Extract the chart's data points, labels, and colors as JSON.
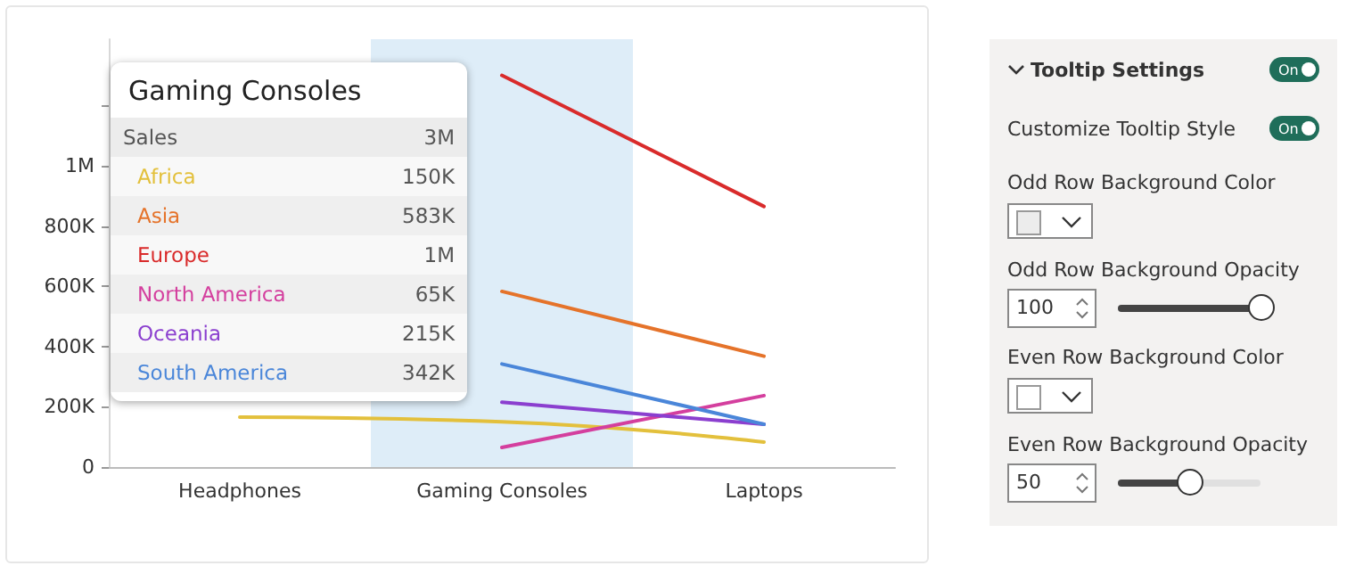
{
  "chart_data": {
    "type": "line",
    "categories": [
      "Headphones",
      "Gaming Consoles",
      "Laptops"
    ],
    "series": [
      {
        "name": "Africa",
        "color": "#e3c03c",
        "values": [
          166000,
          150000,
          83000
        ]
      },
      {
        "name": "Asia",
        "color": "#e5732a",
        "values": [
          null,
          583000,
          368000
        ]
      },
      {
        "name": "Europe",
        "color": "#d92b2b",
        "values": [
          null,
          1300000,
          865000
        ]
      },
      {
        "name": "North America",
        "color": "#d43f9e",
        "values": [
          null,
          65000,
          237000
        ]
      },
      {
        "name": "Oceania",
        "color": "#8b3fcf",
        "values": [
          null,
          215000,
          142000
        ]
      },
      {
        "name": "South America",
        "color": "#4a86d9",
        "values": [
          null,
          342000,
          142000
        ]
      }
    ],
    "ylim": [
      0,
      1420000
    ],
    "yticks": [
      0,
      {
        "value": 200000,
        "label": "200K"
      },
      {
        "value": 400000,
        "label": "400K"
      },
      {
        "value": 600000,
        "label": "600K"
      },
      {
        "value": 800000,
        "label": "800K"
      },
      {
        "value": 1000000,
        "label": "1M"
      },
      {
        "value": 1200000,
        "label": null
      }
    ],
    "bands": [
      {
        "axis": "x",
        "from": "Gaming Consoles",
        "to": "Gaming Consoles",
        "color": "#deedf8"
      }
    ],
    "grid": false,
    "legend": false,
    "marker": "none",
    "line_style": "solid",
    "annotations": [
      "Gaming Consoles",
      "Sales",
      "3M",
      "150K",
      "583K",
      "1M",
      "65K",
      "215K",
      "342K",
      "Tooltip Settings",
      "On",
      "Customize Tooltip Style",
      "On",
      "Odd Row Background Color",
      "Odd Row Background Opacity",
      "100",
      "Even Row Background Color",
      "Even Row Background Opacity",
      "50"
    ]
  }
}
